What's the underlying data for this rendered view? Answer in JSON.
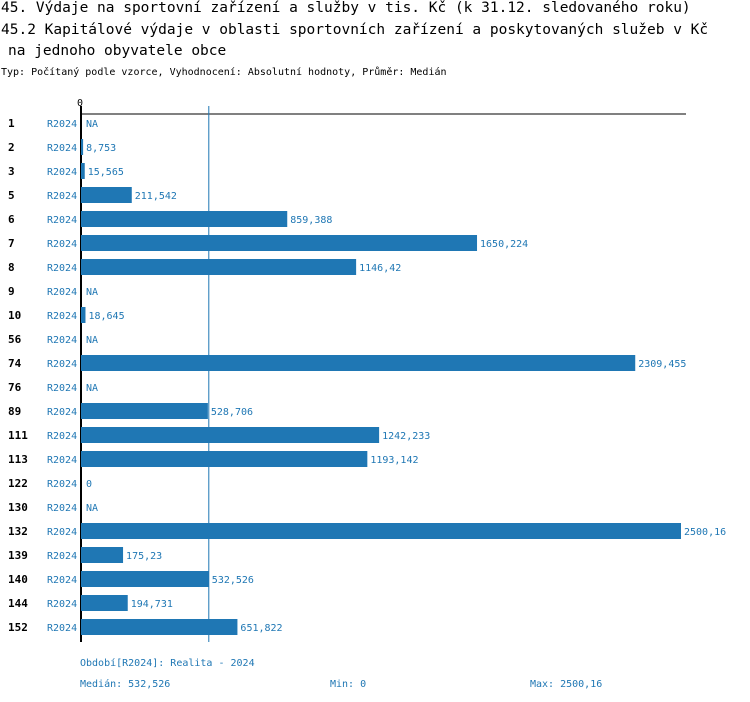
{
  "chart_data": {
    "type": "bar",
    "orientation": "horizontal",
    "title": "45. Výdaje na sportovní zařízení a služby v tis. Kč (k 31.12. sledovaného roku)",
    "subtitle_line1": "45.2 Kapitálové výdaje v oblasti sportovních zařízení a poskytovaných služeb v Kč",
    "subtitle_line2": "na jednoho obyvatele obce",
    "type_line": "Typ: Počítaný podle vzorce, Vyhodnocení: Absolutní hodnoty, Průměr: Medián",
    "x_tick_label": "0",
    "xlim": [
      0,
      2500.16
    ],
    "median_value": 532.526,
    "series_name": "R2024",
    "categories": [
      "1",
      "2",
      "3",
      "5",
      "6",
      "7",
      "8",
      "9",
      "10",
      "56",
      "74",
      "76",
      "89",
      "111",
      "113",
      "122",
      "130",
      "132",
      "139",
      "140",
      "144",
      "152"
    ],
    "values": [
      null,
      8.753,
      15.565,
      211.542,
      859.388,
      1650.224,
      1146.42,
      null,
      18.645,
      null,
      2309.455,
      null,
      528.706,
      1242.233,
      1193.142,
      0,
      null,
      2500.16,
      175.23,
      532.526,
      194.731,
      651.822
    ],
    "value_labels": [
      "NA",
      "8,753",
      "15,565",
      "211,542",
      "859,388",
      "1650,224",
      "1146,42",
      "NA",
      "18,645",
      "NA",
      "2309,455",
      "NA",
      "528,706",
      "1242,233",
      "1193,142",
      "0",
      "NA",
      "2500,16",
      "175,23",
      "532,526",
      "194,731",
      "651,822"
    ],
    "bar_color": "#1f77b4"
  },
  "footer": {
    "period": "Období[R2024]: Realita - 2024",
    "median": "Medián: 532,526",
    "min": "Min: 0",
    "max": "Max: 2500,16"
  }
}
